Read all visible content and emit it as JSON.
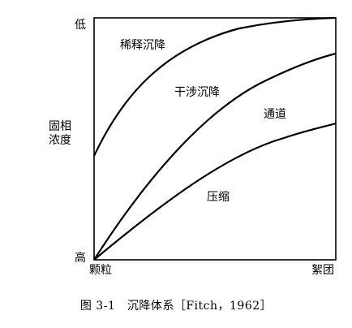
{
  "top_cutoff_text": "",
  "y_axis": {
    "top_label": "低",
    "bottom_label": "高",
    "title_line1": "固相",
    "title_line2": "浓度"
  },
  "x_axis": {
    "left_label": "颗粒",
    "right_label": "絮团"
  },
  "regions": {
    "dilute": "稀释沉降",
    "hindered": "干涉沉降",
    "channel": "通道",
    "compression": "压缩"
  },
  "caption": "图 3-1　沉降体系［Fitch，1962］"
}
